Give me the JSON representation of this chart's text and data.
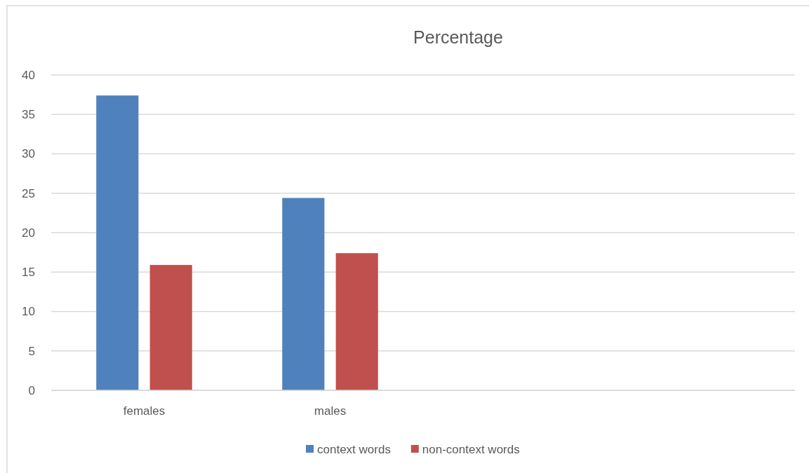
{
  "chart_data": {
    "type": "bar",
    "title": "Percentage",
    "categories": [
      "females",
      "males",
      null,
      null
    ],
    "series": [
      {
        "name": "context words",
        "color": "#4f81bd",
        "values": [
          37.4,
          24.4,
          null,
          null
        ]
      },
      {
        "name": "non-context words",
        "color": "#c0504d",
        "values": [
          15.9,
          17.4,
          null,
          null
        ]
      }
    ],
    "ylim": [
      0,
      40
    ],
    "yticks": [
      0,
      5,
      10,
      15,
      20,
      25,
      30,
      35,
      40
    ],
    "grid": "y",
    "legend": "bottom"
  }
}
